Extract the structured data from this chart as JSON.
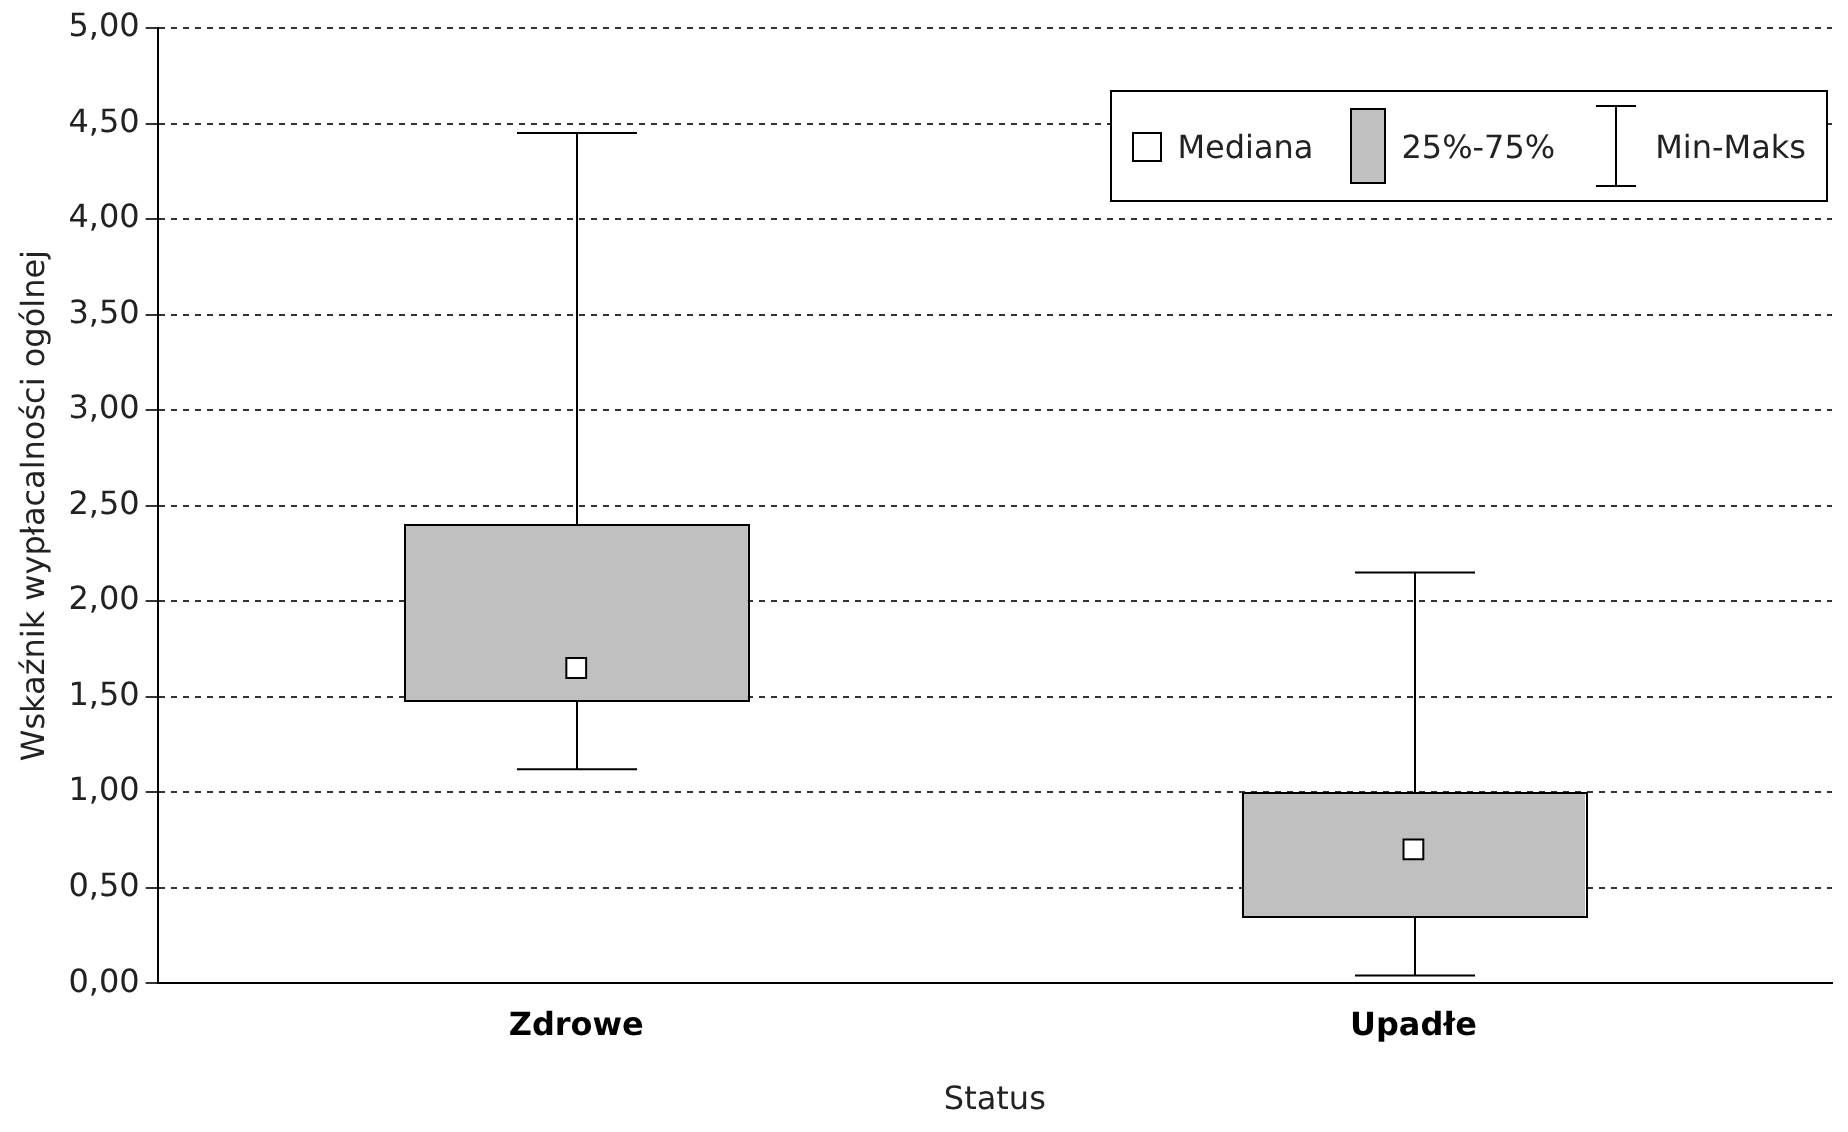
{
  "chart_data": {
    "type": "box",
    "xlabel": "Status",
    "ylabel": "Wskaźnik wypłacalności ogólnej",
    "categories": [
      "Zdrowe",
      "Upadłe"
    ],
    "series": [
      {
        "name": "25%-75%",
        "color": "#c0c0c0",
        "boxes": [
          {
            "low": 1.12,
            "q1": 1.48,
            "median": 1.65,
            "q3": 2.4,
            "high": 4.45
          },
          {
            "low": 0.04,
            "q1": 0.35,
            "median": 0.7,
            "q3": 1.0,
            "high": 2.15
          }
        ]
      }
    ],
    "annotations": [
      "Mediana",
      "Min-Maks"
    ],
    "ylim": [
      0,
      5
    ],
    "yticks": [
      {
        "value": 0,
        "label": "0,00"
      },
      {
        "value": 0.5,
        "label": "0,50"
      },
      {
        "value": 1,
        "label": "1,00"
      },
      {
        "value": 1.5,
        "label": "1,50"
      },
      {
        "value": 2,
        "label": "2,00"
      },
      {
        "value": 2.5,
        "label": "2,50"
      },
      {
        "value": 3,
        "label": "3,00"
      },
      {
        "value": 3.5,
        "label": "3,50"
      },
      {
        "value": 4,
        "label": "4,00"
      },
      {
        "value": 4.5,
        "label": "4,50"
      },
      {
        "value": 5,
        "label": "5,00"
      }
    ],
    "grid": "y",
    "line_style": "dashed",
    "legend": "top right"
  }
}
